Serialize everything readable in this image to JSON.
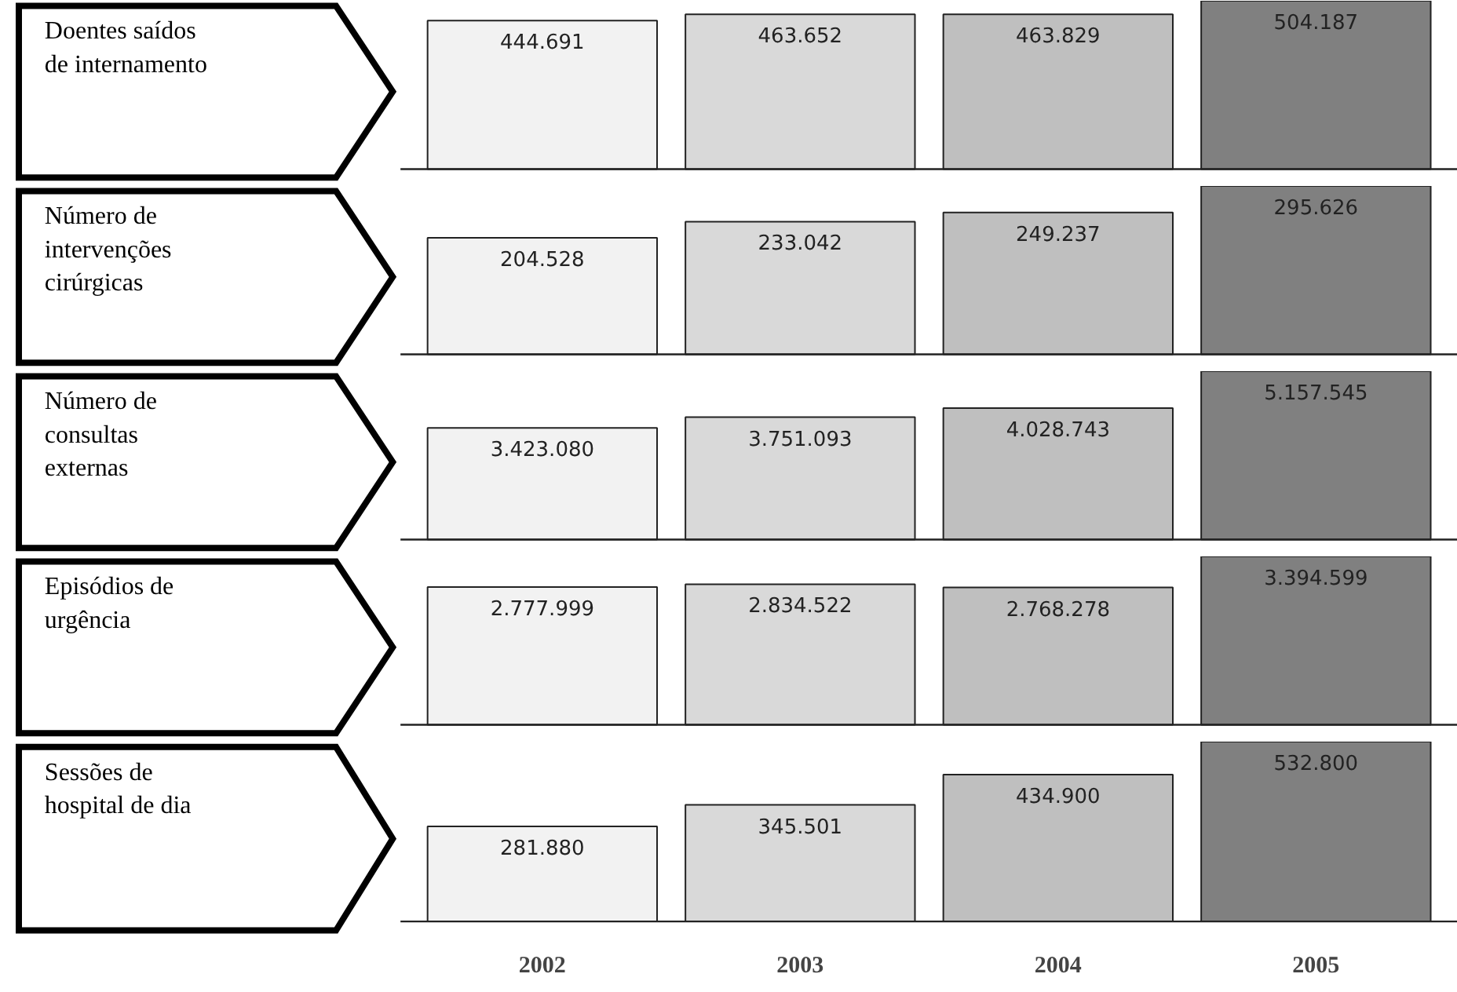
{
  "chart_data": [
    {
      "type": "bar",
      "annotations": [
        "Doentes saídos de internamento"
      ],
      "categories": [
        "2002",
        "2003",
        "2004",
        "2005"
      ],
      "values": [
        444691,
        463652,
        463829,
        504187
      ],
      "colors": [
        "#f2f2f2",
        "#d9d9d9",
        "#bfbfbf",
        "#808080"
      ],
      "value_labels": [
        "444.691",
        "463.652",
        "463.829",
        "504.187"
      ],
      "tick_labels": false
    },
    {
      "type": "bar",
      "annotations": [
        "Número de intervenções cirúrgicas"
      ],
      "categories": [
        "2002",
        "2003",
        "2004",
        "2005"
      ],
      "values": [
        204528,
        233042,
        249237,
        295626
      ],
      "colors": [
        "#f2f2f2",
        "#d9d9d9",
        "#bfbfbf",
        "#808080"
      ],
      "value_labels": [
        "204.528",
        "233.042",
        "249.237",
        "295.626"
      ],
      "tick_labels": false
    },
    {
      "type": "bar",
      "annotations": [
        "Número de consultas externas"
      ],
      "categories": [
        "2002",
        "2003",
        "2004",
        "2005"
      ],
      "values": [
        3423080,
        3751093,
        4028743,
        5157545
      ],
      "colors": [
        "#f2f2f2",
        "#d9d9d9",
        "#bfbfbf",
        "#808080"
      ],
      "value_labels": [
        "3.423.080",
        "3.751.093",
        "4.028.743",
        "5.157.545"
      ],
      "tick_labels": false
    },
    {
      "type": "bar",
      "annotations": [
        "Episódios de urgência"
      ],
      "categories": [
        "2002",
        "2003",
        "2004",
        "2005"
      ],
      "values": [
        2777999,
        2834522,
        2768278,
        3394599
      ],
      "colors": [
        "#f2f2f2",
        "#d9d9d9",
        "#bfbfbf",
        "#808080"
      ],
      "value_labels": [
        "2.777.999",
        "2.834.522",
        "2.768.278",
        "3.394.599"
      ],
      "tick_labels": false
    },
    {
      "type": "bar",
      "annotations": [
        "Sessões de hospital de dia"
      ],
      "categories": [
        "2002",
        "2003",
        "2004",
        "2005"
      ],
      "values": [
        281880,
        345501,
        434900,
        532800
      ],
      "colors": [
        "#f2f2f2",
        "#d9d9d9",
        "#bfbfbf",
        "#808080"
      ],
      "value_labels": [
        "281.880",
        "345.501",
        "434.900",
        "532.800"
      ],
      "tick_labels": "x"
    }
  ]
}
